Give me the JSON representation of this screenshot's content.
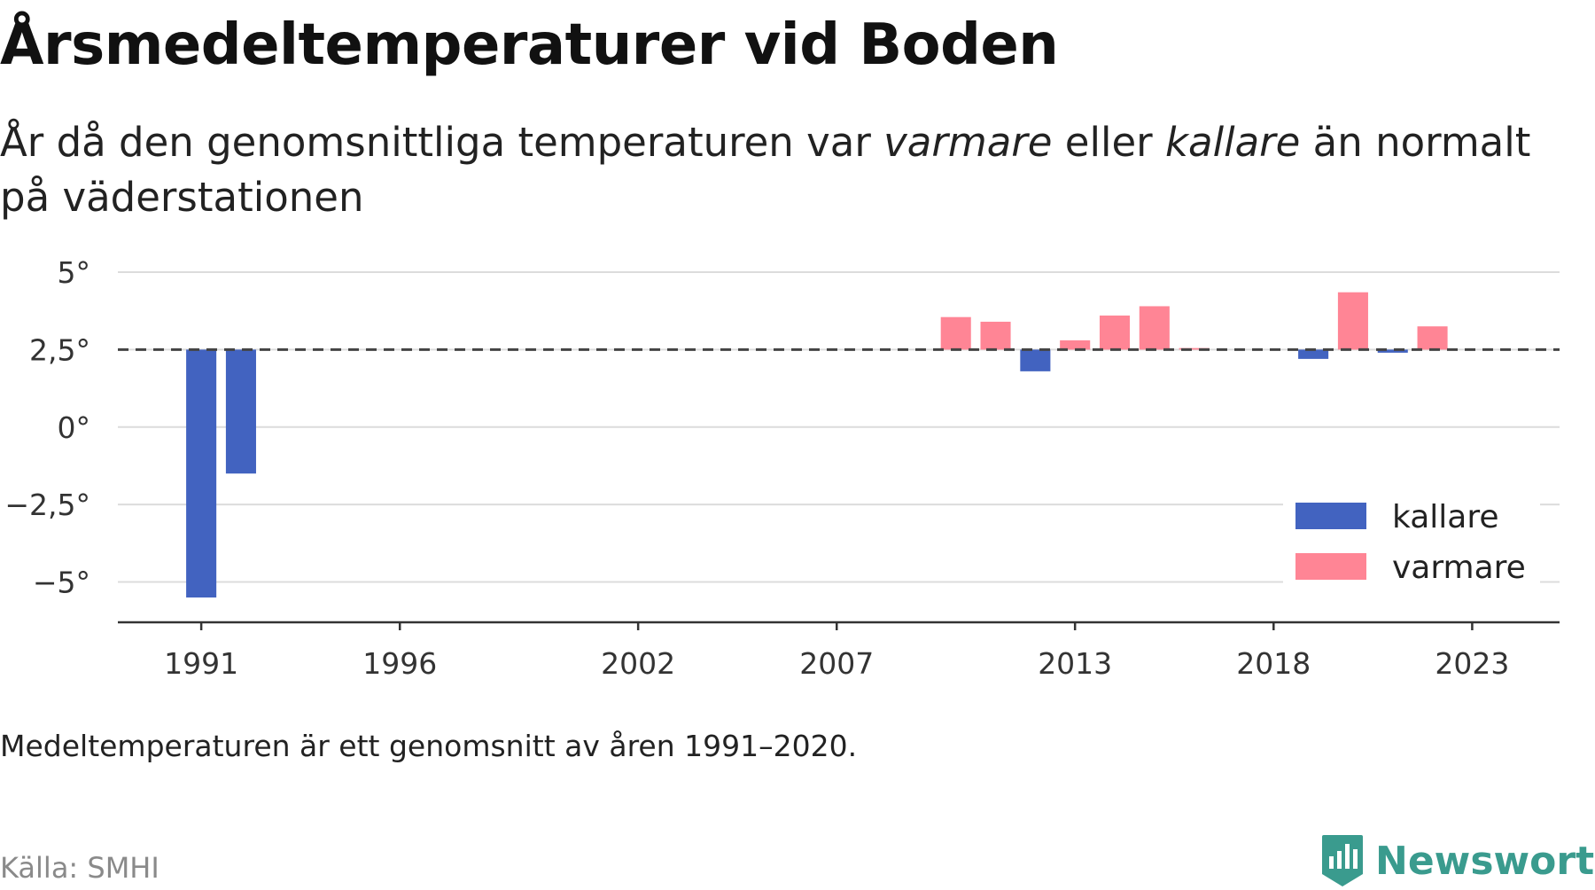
{
  "header": {
    "title": "Årsmedeltemperaturer vid Boden",
    "subtitle_pre": "År då den genomsnittliga temperaturen var ",
    "subtitle_em1": "varmare",
    "subtitle_mid": " eller ",
    "subtitle_em2": "kallare",
    "subtitle_post": " än normalt på väderstationen"
  },
  "footer": {
    "note": "Medeltemperaturen är ett genomsnitt av åren 1991–2020.",
    "source": "Källa: SMHI",
    "brand": "Newsworthy"
  },
  "colors": {
    "kallare": "#4263c0",
    "varmare": "#ff8595",
    "grid": "#dcdcdc",
    "axis": "#333333",
    "baseline": "#444444",
    "brand": "#3a9b8e"
  },
  "chart_data": {
    "type": "bar",
    "baseline": 2.5,
    "baseline_style": "dashed",
    "ylim": [
      -6.3,
      5
    ],
    "yticks": [
      5,
      2.5,
      0,
      -2.5,
      -5
    ],
    "ytick_labels": [
      "5°",
      "2,5°",
      "0°",
      "−2,5°",
      "−5°"
    ],
    "xlim": [
      1988.9,
      2025.2
    ],
    "xticks": [
      1991,
      1996,
      2002,
      2007,
      2013,
      2018,
      2023
    ],
    "xtick_labels": [
      "1991",
      "1996",
      "2002",
      "2007",
      "2013",
      "2018",
      "2023"
    ],
    "grid": "horizontal",
    "legend": {
      "position": "bottom-right",
      "entries": [
        {
          "key": "kallare",
          "label": "kallare"
        },
        {
          "key": "varmare",
          "label": "varmare"
        }
      ]
    },
    "series": [
      {
        "year": 1991,
        "value": -5.5,
        "kind": "kallare"
      },
      {
        "year": 1992,
        "value": -1.5,
        "kind": "kallare"
      },
      {
        "year": 2010,
        "value": 3.55,
        "kind": "varmare"
      },
      {
        "year": 2011,
        "value": 3.4,
        "kind": "varmare"
      },
      {
        "year": 2012,
        "value": 1.8,
        "kind": "kallare"
      },
      {
        "year": 2013,
        "value": 2.8,
        "kind": "varmare"
      },
      {
        "year": 2014,
        "value": 3.6,
        "kind": "varmare"
      },
      {
        "year": 2015,
        "value": 3.9,
        "kind": "varmare"
      },
      {
        "year": 2016,
        "value": 2.55,
        "kind": "varmare"
      },
      {
        "year": 2019,
        "value": 2.2,
        "kind": "kallare"
      },
      {
        "year": 2020,
        "value": 4.35,
        "kind": "varmare"
      },
      {
        "year": 2021,
        "value": 2.4,
        "kind": "kallare"
      },
      {
        "year": 2022,
        "value": 3.25,
        "kind": "varmare"
      }
    ]
  }
}
